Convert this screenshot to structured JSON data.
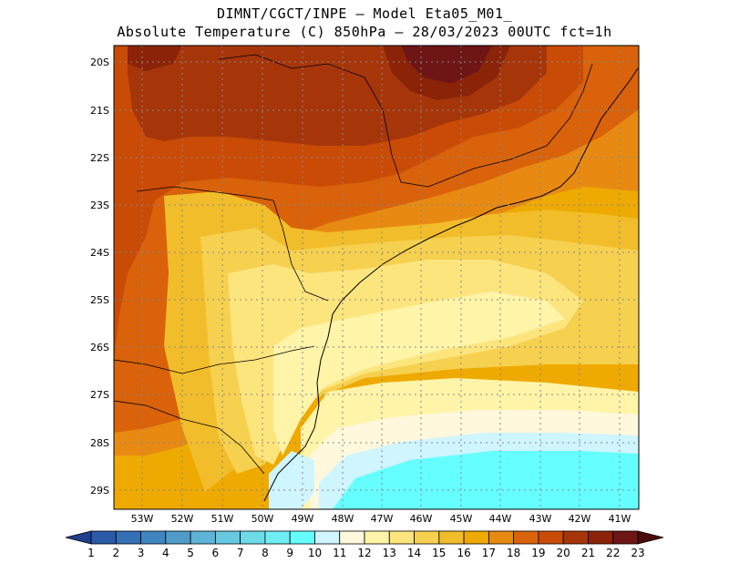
{
  "header": {
    "line1": "DIMNT/CGCT/INPE –  Model Eta05_M01_",
    "line2": "Absolute Temperature (C) 850hPa –  28/03/2023 00UTC fct=1h"
  },
  "map": {
    "lat_labels": [
      "20S",
      "21S",
      "22S",
      "23S",
      "24S",
      "25S",
      "26S",
      "27S",
      "28S",
      "29S"
    ],
    "lon_labels": [
      "53W",
      "52W",
      "51W",
      "50W",
      "49W",
      "48W",
      "47W",
      "46W",
      "45W",
      "44W",
      "43W",
      "42W",
      "41W"
    ]
  },
  "colorbar": {
    "labels": [
      "1",
      "2",
      "3",
      "4",
      "5",
      "6",
      "7",
      "8",
      "9",
      "10",
      "11",
      "12",
      "13",
      "14",
      "15",
      "16",
      "17",
      "18",
      "19",
      "20",
      "21",
      "22",
      "23"
    ],
    "colors": [
      "#1f3f8f",
      "#2a5aa8",
      "#3470b4",
      "#3f85c0",
      "#4f9ccb",
      "#5db4d6",
      "#66c9e0",
      "#6ddbe8",
      "#6feef3",
      "#66ffff",
      "#cff5ff",
      "#fff8dc",
      "#fff4a8",
      "#fde57e",
      "#f6d04f",
      "#f2bd2a",
      "#eeaa00",
      "#e88a12",
      "#d9620a",
      "#c94b06",
      "#a6360a",
      "#8a2308",
      "#6e1515",
      "#4e0a0a"
    ]
  }
}
